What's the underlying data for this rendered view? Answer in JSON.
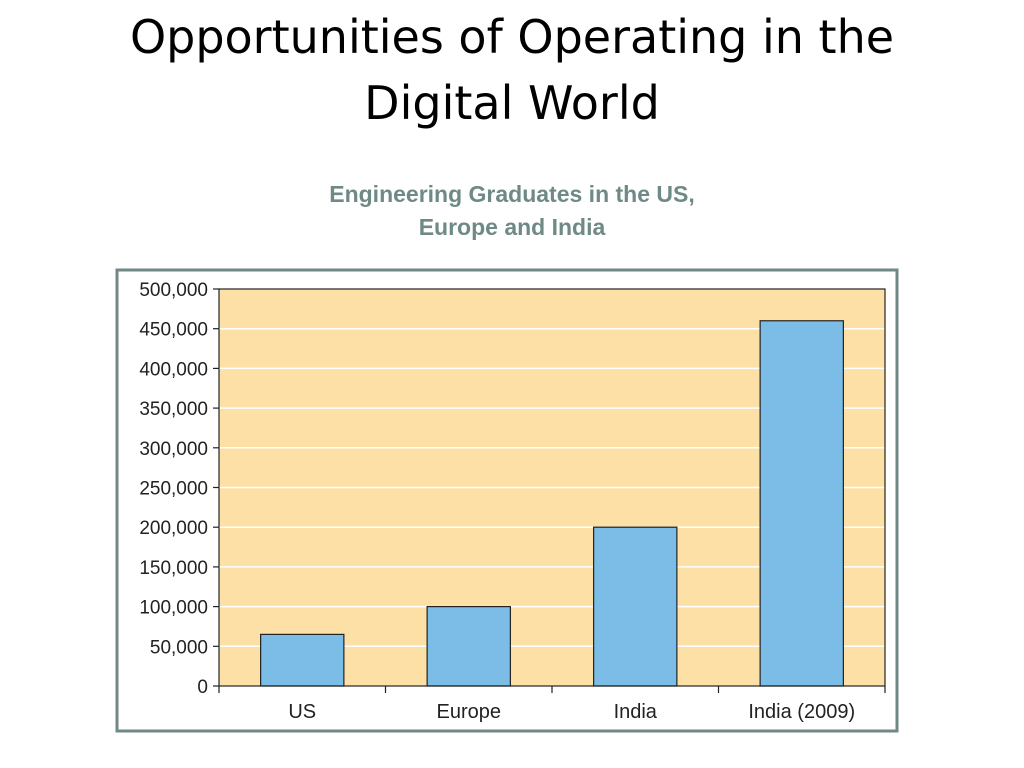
{
  "slide": {
    "title_line1": "Opportunities of Operating in the",
    "title_line2": "Digital World"
  },
  "chart_data": {
    "type": "bar",
    "title_line1": "Engineering Graduates in the US,",
    "title_line2": "Europe and India",
    "categories": [
      "US",
      "Europe",
      "India",
      "India (2009)"
    ],
    "values": [
      65000,
      100000,
      200000,
      460000
    ],
    "ylim": [
      0,
      500000
    ],
    "yticks": [
      "0",
      "50,000",
      "100,000",
      "150,000",
      "200,000",
      "250,000",
      "300,000",
      "350,000",
      "400,000",
      "450,000",
      "500,000"
    ],
    "grid": true,
    "colors": {
      "bar": "#7bbde6",
      "plot_background": "#fde0a5",
      "frame_border": "#6f8a86",
      "title": "#6f8a86",
      "gridline": "#ffffff"
    }
  }
}
